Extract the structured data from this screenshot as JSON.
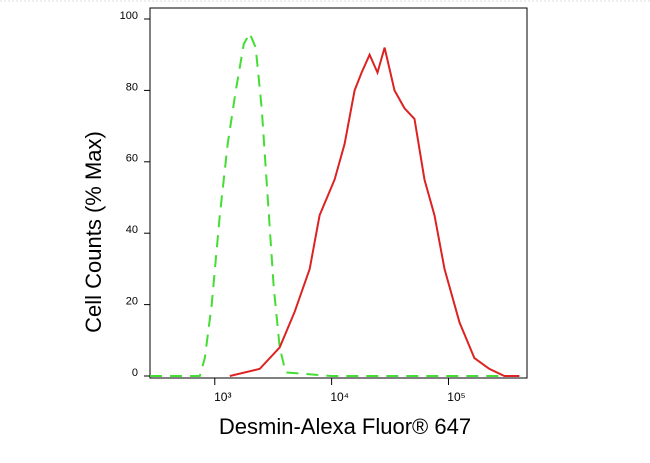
{
  "chart_data": {
    "type": "line",
    "xscale": "log",
    "ylabel": "Cell Counts (% Max)",
    "xlabel": "Desmin-Alexa Fluor® 647",
    "xlim": [
      279,
      470000
    ],
    "ylim": [
      0,
      100
    ],
    "xticks": [
      {
        "value": 1000,
        "label": "10³"
      },
      {
        "value": 10000,
        "label": "10⁴"
      },
      {
        "value": 100000,
        "label": "10⁵"
      }
    ],
    "yticks": [
      0,
      20,
      40,
      60,
      80,
      100
    ],
    "series": [
      {
        "color": "#44dd33",
        "dash": true,
        "x": [
          279,
          745,
          822,
          942,
          1103,
          1291,
          1512,
          1771,
          1991,
          2240,
          2522,
          2839,
          3193,
          3597,
          4046,
          10000,
          100000,
          404700
        ],
        "values": [
          0,
          0,
          5,
          20,
          45,
          65,
          80,
          93,
          96,
          92,
          75,
          50,
          25,
          8,
          1,
          0,
          0,
          0
        ]
      },
      {
        "color": "#dd2222",
        "dash": false,
        "x": [
          1344,
          2425,
          3594,
          4830,
          6486,
          7891,
          10610,
          12910,
          15730,
          18040,
          21120,
          24720,
          28380,
          34530,
          42040,
          51190,
          62340,
          75880,
          92440,
          124200,
          166700,
          224100,
          301300,
          404600
        ],
        "values": [
          0,
          2,
          8,
          18,
          30,
          45,
          55,
          65,
          80,
          85,
          90,
          85,
          92,
          80,
          75,
          72,
          55,
          45,
          30,
          15,
          5,
          2,
          0,
          0
        ]
      }
    ]
  }
}
